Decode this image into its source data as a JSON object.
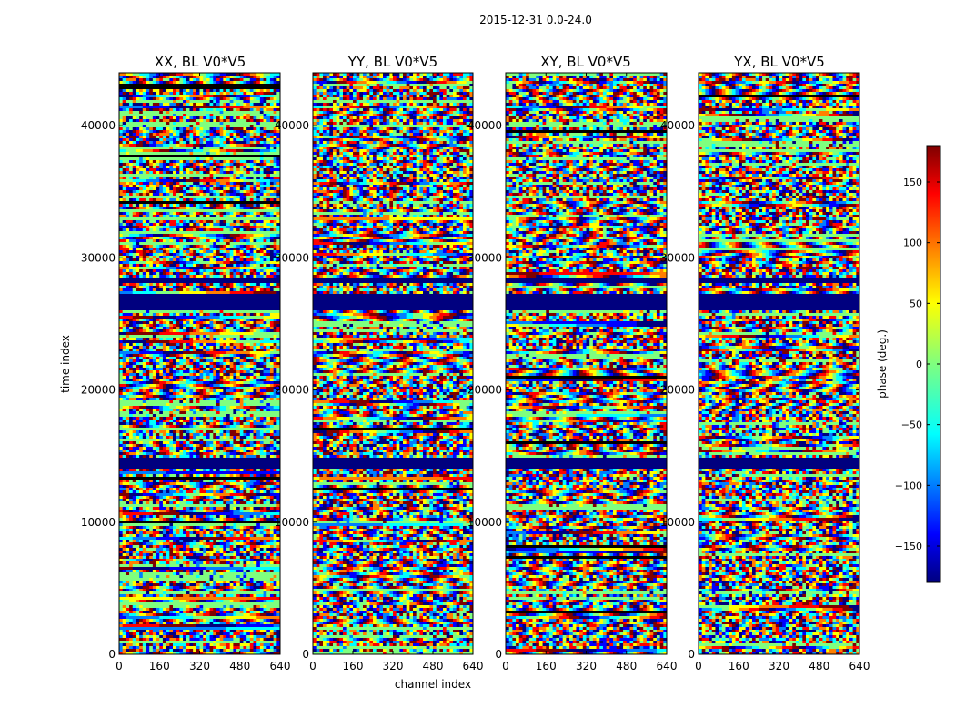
{
  "chart_data": {
    "type": "heatmap",
    "title": "2015-12-31 0.0-24.0",
    "xlabel": "channel index",
    "ylabel": "time index",
    "xlim": [
      0,
      640
    ],
    "ylim": [
      0,
      44000
    ],
    "xticks": [
      "0",
      "160",
      "320",
      "480",
      "640"
    ],
    "yticks": [
      "0",
      "10000",
      "20000",
      "30000",
      "40000"
    ],
    "panels": [
      {
        "title": "XX, BL V0*V5"
      },
      {
        "title": "YY, BL V0*V5"
      },
      {
        "title": "XY, BL V0*V5"
      },
      {
        "title": "YX, BL V0*V5"
      }
    ],
    "colorbar": {
      "label": "phase (deg.)",
      "range": [
        -180,
        180
      ],
      "ticks": [
        "150",
        "100",
        "50",
        "0",
        "−50",
        "−100",
        "−150"
      ],
      "colormap": [
        "#00007f",
        "#0000ff",
        "#007fff",
        "#00ffff",
        "#7fff7f",
        "#ffff00",
        "#ff7f00",
        "#ff0000",
        "#7f0000"
      ]
    },
    "flagged_time_ranges": [
      [
        14000,
        14800
      ],
      [
        26000,
        27200
      ],
      [
        28000,
        28600
      ]
    ],
    "flagged_value": -180
  }
}
